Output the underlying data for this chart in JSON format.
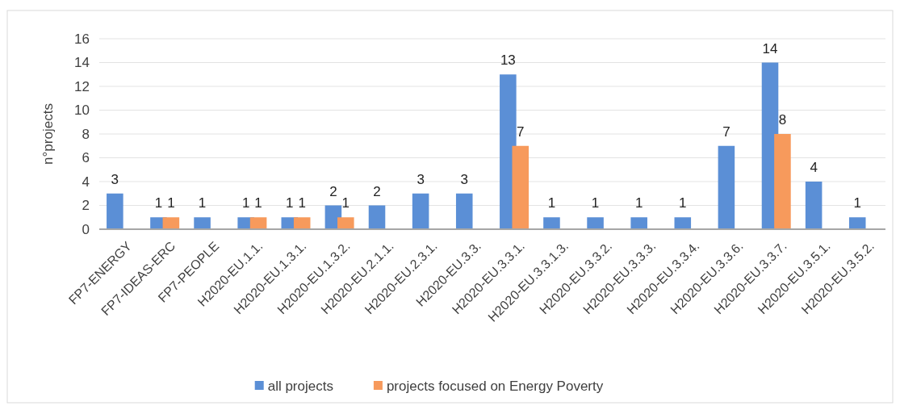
{
  "chart_data": {
    "type": "bar",
    "ylabel": "n°projects",
    "categories": [
      "FP7-ENERGY",
      "FP7-IDEAS-ERC",
      "FP7-PEOPLE",
      "H2020-EU.1.1.",
      "H2020-EU.1.3.1.",
      "H2020-EU.1.3.2.",
      "H2020-EU.2.1.1.",
      "H2020-EU.2.3.1.",
      "H2020-EU.3.3.",
      "H2020-EU.3.3.1.",
      "H2020-EU.3.3.1.3.",
      "H2020-EU.3.3.2.",
      "H2020-EU.3.3.3.",
      "H2020-EU.3.3.4.",
      "H2020-EU.3.3.6.",
      "H2020-EU.3.3.7.",
      "H2020-EU.3.5.1.",
      "H2020-EU.3.5.2."
    ],
    "series": [
      {
        "name": "all projects",
        "color": "#5b8fd6",
        "values": [
          3,
          1,
          1,
          1,
          1,
          2,
          2,
          3,
          3,
          13,
          1,
          1,
          1,
          1,
          7,
          14,
          4,
          1
        ]
      },
      {
        "name": "projects focused on Energy Poverty",
        "color": "#f79a5c",
        "values": [
          null,
          1,
          null,
          1,
          1,
          1,
          null,
          null,
          null,
          7,
          null,
          null,
          null,
          null,
          null,
          8,
          null,
          null
        ]
      }
    ],
    "ylim": [
      0,
      16
    ],
    "yticks": [
      0,
      2,
      4,
      6,
      8,
      10,
      12,
      14,
      16
    ],
    "grid": "y",
    "legend": "bottom",
    "data_labels": true
  }
}
